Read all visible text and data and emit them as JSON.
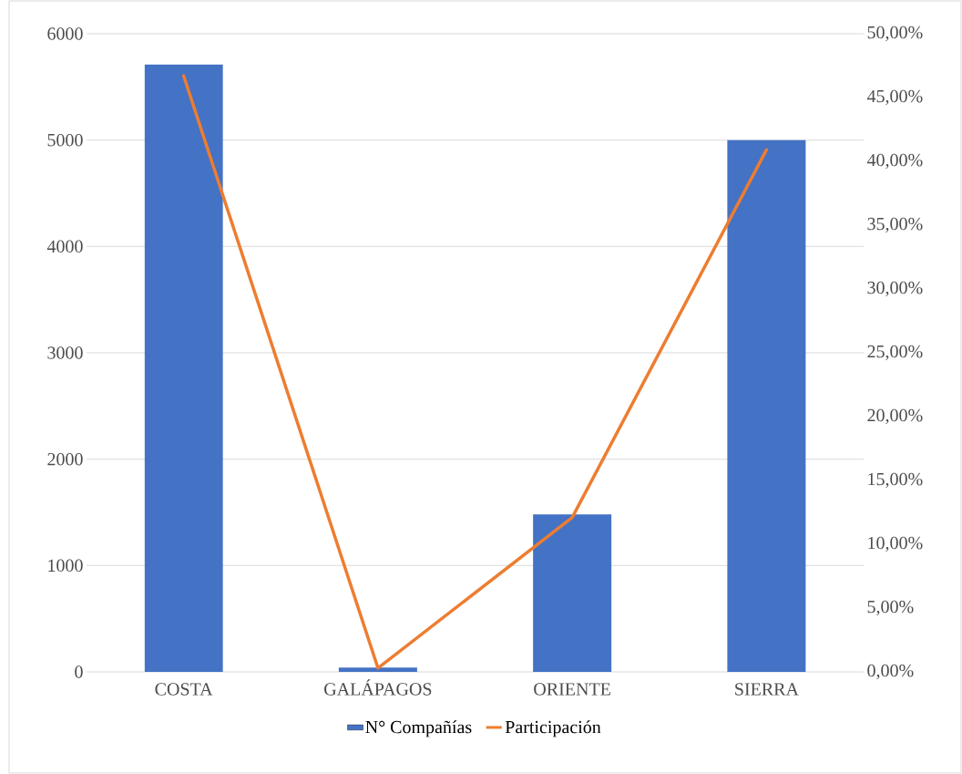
{
  "chart_data": {
    "type": "bar",
    "categories": [
      "COSTA",
      "GALÁPAGOS",
      "ORIENTE",
      "SIERRA"
    ],
    "series": [
      {
        "name": "N° Compañías",
        "color": "#4472c4",
        "values": [
          5710,
          40,
          1480,
          5000
        ]
      },
      {
        "name": "Participación",
        "type": "line",
        "axis": "y2",
        "color": "#ed7d31",
        "values": [
          46.7,
          0.3,
          12.1,
          40.9
        ]
      }
    ],
    "ylim": [
      0,
      6000
    ],
    "yticks": [
      0,
      1000,
      2000,
      3000,
      4000,
      5000,
      6000
    ],
    "y2lim": [
      0,
      50
    ],
    "y2ticks": [
      {
        "value": 0,
        "label": "0,00%"
      },
      {
        "value": 5,
        "label": "5,00%"
      },
      {
        "value": 10,
        "label": "10,00%"
      },
      {
        "value": 15,
        "label": "15,00%"
      },
      {
        "value": 20,
        "label": "20,00%"
      },
      {
        "value": 25,
        "label": "25,00%"
      },
      {
        "value": 30,
        "label": "30,00%"
      },
      {
        "value": 35,
        "label": "35,00%"
      },
      {
        "value": 40,
        "label": "40,00%"
      },
      {
        "value": 45,
        "label": "45,00%"
      },
      {
        "value": 50,
        "label": "50,00%"
      }
    ],
    "grid": "y",
    "legend": "bottom"
  }
}
